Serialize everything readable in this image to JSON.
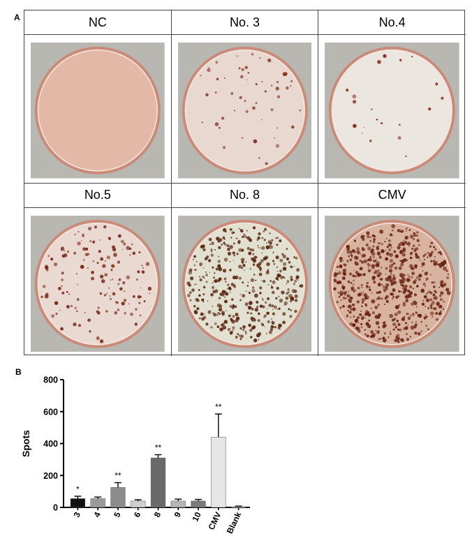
{
  "panel_a": {
    "letter": "A",
    "wells": [
      {
        "label": "NC",
        "spots": 0,
        "dish": "#e4b8a6",
        "spot": "#7a2f1c"
      },
      {
        "label": "No. 3",
        "spots": 55,
        "dish": "#e8d8cf",
        "spot": "#8a3a24"
      },
      {
        "label": "No.4",
        "spots": 20,
        "dish": "#ece6e0",
        "spot": "#8a3018"
      },
      {
        "label": "No.5",
        "spots": 140,
        "dish": "#ead9d0",
        "spot": "#7a2a18"
      },
      {
        "label": "No. 8",
        "spots": 420,
        "dish": "#e2e0d0",
        "spot": "#5e2a14"
      },
      {
        "label": "CMV",
        "spots": 620,
        "dish": "#d8b3a0",
        "spot": "#6a2412"
      }
    ]
  },
  "panel_b": {
    "letter": "B",
    "chart_data": {
      "type": "bar",
      "ylabel": "Spots",
      "xlabel": "",
      "ylim": [
        0,
        800
      ],
      "yticks": [
        "0",
        "200",
        "400",
        "600",
        "800"
      ],
      "categories": [
        "3",
        "4",
        "5",
        "6",
        "8",
        "9",
        "10",
        "CMV",
        "Blank"
      ],
      "values": [
        55,
        55,
        125,
        40,
        310,
        40,
        40,
        440,
        5
      ],
      "errors": [
        15,
        10,
        30,
        8,
        20,
        12,
        10,
        145,
        3
      ],
      "significance": [
        "*",
        "",
        "**",
        "",
        "**",
        "",
        "",
        "**",
        ""
      ],
      "colors": [
        "#111111",
        "#9a9a9a",
        "#8c8c8c",
        "#cfcfcf",
        "#6a6a6a",
        "#b5b5b5",
        "#7a7a7a",
        "#e6e6e6",
        "#f2f2f2"
      ]
    }
  }
}
